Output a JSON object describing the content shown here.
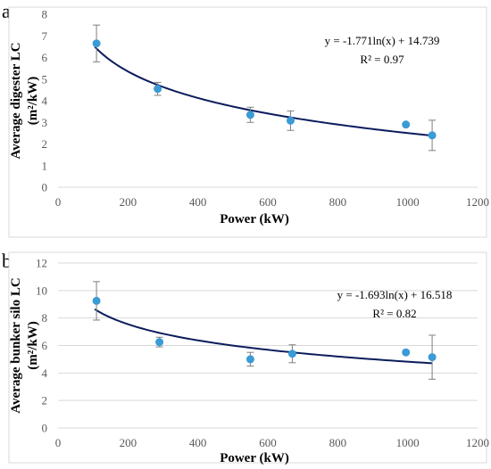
{
  "colors": {
    "marker": "#3a9bd5",
    "trendline": "#0b1c5c",
    "errorbar": "#7f7f7f",
    "tick_text": "#595959",
    "grid": "#d9d9d9"
  },
  "chart_data": [
    {
      "panel_label": "a",
      "type": "scatter",
      "xlabel": "Power (kW)",
      "ylabel_lines": [
        "Average digester LC",
        "(m²/kW)"
      ],
      "xlim": [
        0,
        1200
      ],
      "ylim": [
        0,
        8
      ],
      "xticks": [
        0,
        200,
        400,
        600,
        800,
        1000,
        1200
      ],
      "yticks": [
        0,
        1,
        2,
        3,
        4,
        5,
        6,
        7,
        8
      ],
      "grid": "none",
      "points": [
        {
          "x": 110,
          "y": 6.65,
          "err": 0.85
        },
        {
          "x": 285,
          "y": 4.55,
          "err": 0.3
        },
        {
          "x": 550,
          "y": 3.35,
          "err": 0.35
        },
        {
          "x": 665,
          "y": 3.08,
          "err": 0.45
        },
        {
          "x": 995,
          "y": 2.9,
          "err": 0
        },
        {
          "x": 1070,
          "y": 2.4,
          "err": 0.7
        }
      ],
      "trendline": {
        "type": "logarithmic",
        "a": -1.771,
        "b": 14.739,
        "x_range": [
          105,
          1070
        ]
      },
      "equation": "y = -1.771ln(x) + 14.739",
      "r_squared": "R² = 0.97"
    },
    {
      "panel_label": "b",
      "type": "scatter",
      "xlabel": "Power (kW)",
      "ylabel_lines": [
        "Average bunker silo LC",
        "(m²/kW)"
      ],
      "xlim": [
        0,
        1200
      ],
      "ylim": [
        0,
        12
      ],
      "xticks": [
        0,
        200,
        400,
        600,
        800,
        1000,
        1200
      ],
      "yticks": [
        0,
        2,
        4,
        6,
        8,
        10,
        12
      ],
      "grid": "horizontal",
      "points": [
        {
          "x": 110,
          "y": 9.25,
          "err": 1.4
        },
        {
          "x": 290,
          "y": 6.25,
          "err": 0.35
        },
        {
          "x": 550,
          "y": 5.0,
          "err": 0.5
        },
        {
          "x": 670,
          "y": 5.4,
          "err": 0.65
        },
        {
          "x": 995,
          "y": 5.5,
          "err": 0
        },
        {
          "x": 1070,
          "y": 5.15,
          "err": 1.6
        }
      ],
      "trendline": {
        "type": "logarithmic",
        "a": -1.693,
        "b": 16.518,
        "x_range": [
          105,
          1070
        ]
      },
      "equation": "y = -1.693ln(x) + 16.518",
      "r_squared": "R² = 0.82"
    }
  ]
}
